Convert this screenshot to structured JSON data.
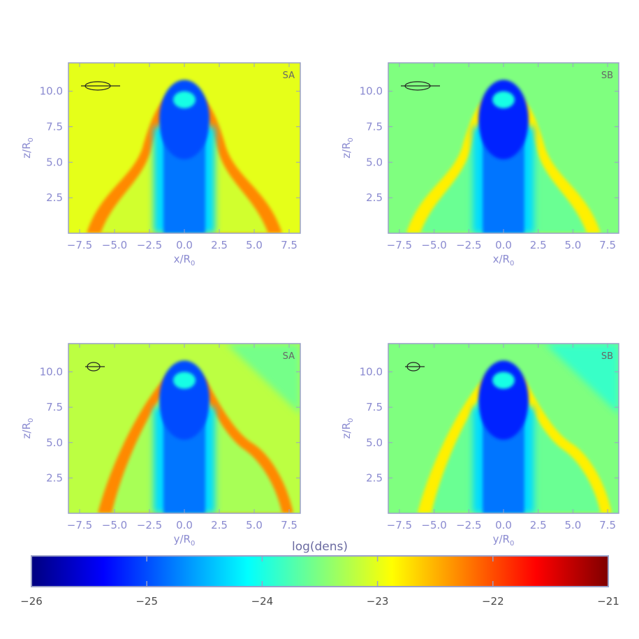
{
  "chart_data": {
    "type": "heatmap",
    "colorbar": {
      "title": "log(dens)",
      "ticks": [
        "−26",
        "−25",
        "−24",
        "−23",
        "−22",
        "−21"
      ],
      "range": [
        -26,
        -21
      ],
      "colormap": [
        "#00007f",
        "#0000ff",
        "#007fff",
        "#00ffff",
        "#7fff7f",
        "#ffff00",
        "#ff7f00",
        "#ff0000",
        "#7f0000"
      ]
    },
    "panels": [
      {
        "label": "SA",
        "xlabel": "x/R",
        "xsub": "0",
        "ylabel": "z/R",
        "ysub": "0",
        "xticks": [
          "−7.5",
          "−5.0",
          "−2.5",
          "0.0",
          "2.5",
          "5.0",
          "7.5"
        ],
        "yticks": [
          "2.5",
          "5.0",
          "7.5",
          "10.0"
        ],
        "xlim": [
          -8.3,
          8.3
        ],
        "ylim": [
          0,
          12
        ],
        "background_log_dens": -23.0,
        "shell_log_dens": -22.3,
        "bubble_log_dens": -25.0,
        "symmetric": true,
        "inset_glyph": "edge-on disk icon"
      },
      {
        "label": "SB",
        "xlabel": "x/R",
        "xsub": "0",
        "ylabel": "z/R",
        "ysub": "0",
        "xticks": [
          "−7.5",
          "−5.0",
          "−2.5",
          "0.0",
          "2.5",
          "5.0",
          "7.5"
        ],
        "yticks": [
          "2.5",
          "5.0",
          "7.5",
          "10.0"
        ],
        "xlim": [
          -8.3,
          8.3
        ],
        "ylim": [
          0,
          12
        ],
        "background_log_dens": -23.5,
        "shell_log_dens": -22.8,
        "bubble_log_dens": -25.2,
        "symmetric": true,
        "inset_glyph": "edge-on disk icon"
      },
      {
        "label": "SA",
        "xlabel": "y/R",
        "xsub": "0",
        "ylabel": "z/R",
        "ysub": "0",
        "xticks": [
          "−7.5",
          "−5.0",
          "−2.5",
          "0.0",
          "2.5",
          "5.0",
          "7.5"
        ],
        "yticks": [
          "2.5",
          "5.0",
          "7.5",
          "10.0"
        ],
        "xlim": [
          -8.3,
          8.3
        ],
        "ylim": [
          0,
          12
        ],
        "background_log_dens": -23.2,
        "shell_log_dens": -22.3,
        "bubble_log_dens": -25.0,
        "symmetric": false,
        "inset_glyph": "face-on disk icon"
      },
      {
        "label": "SB",
        "xlabel": "y/R",
        "xsub": "0",
        "ylabel": "z/R",
        "ysub": "0",
        "xticks": [
          "−7.5",
          "−5.0",
          "−2.5",
          "0.0",
          "2.5",
          "5.0",
          "7.5"
        ],
        "yticks": [
          "2.5",
          "5.0",
          "7.5",
          "10.0"
        ],
        "xlim": [
          -8.3,
          8.3
        ],
        "ylim": [
          0,
          12
        ],
        "background_log_dens": -23.5,
        "shell_log_dens": -22.8,
        "bubble_log_dens": -25.2,
        "symmetric": false,
        "inset_glyph": "face-on disk icon"
      }
    ]
  },
  "colors": {
    "axis": "#8a8ad0",
    "ink": "#4a4a4a",
    "frame": "#9aa0c8"
  }
}
